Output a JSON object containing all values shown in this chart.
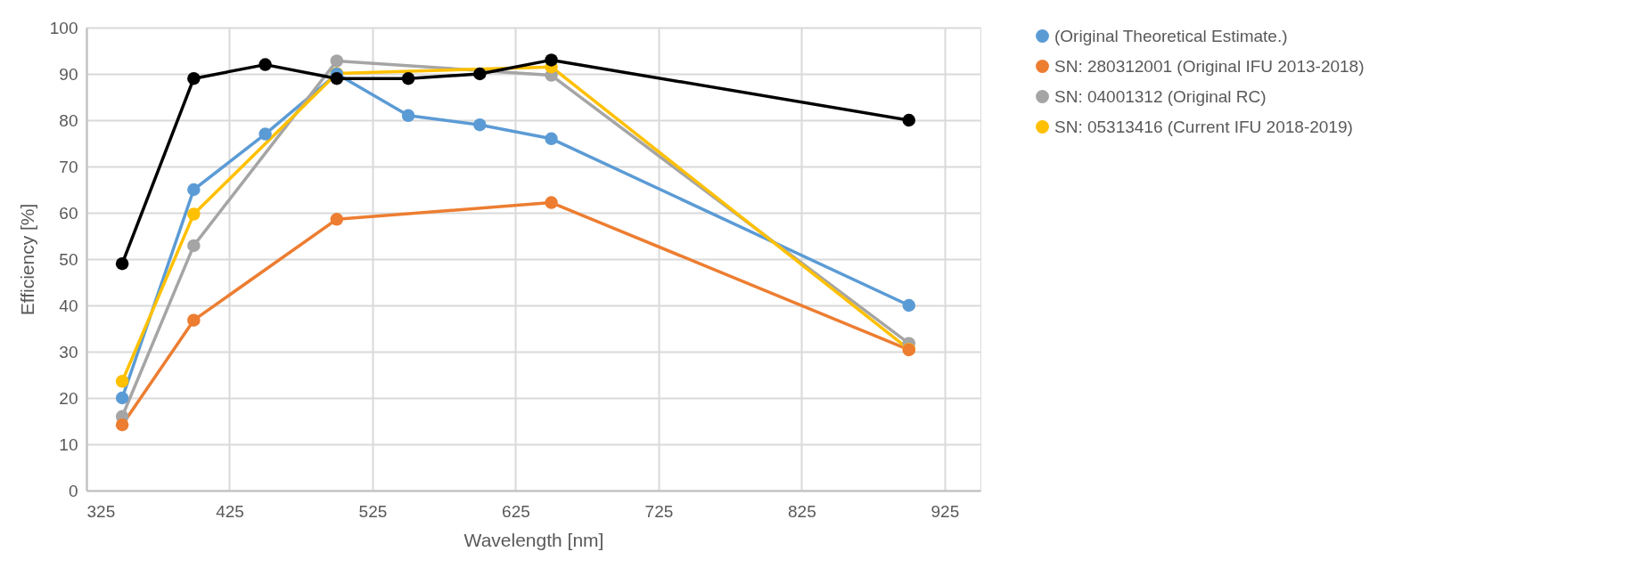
{
  "chart_data": {
    "type": "line",
    "xlabel": "Wavelength [nm]",
    "ylabel": "Efficiency [%]",
    "xlim": [
      325,
      950
    ],
    "xticks": [
      325,
      425,
      525,
      625,
      725,
      825,
      925
    ],
    "ylim": [
      0,
      100
    ],
    "yticks": [
      0,
      10,
      20,
      30,
      40,
      50,
      60,
      70,
      80,
      90,
      100
    ],
    "grid": true,
    "legend": "right",
    "marker": "circle",
    "line_style": "solid",
    "series": [
      {
        "name": "(Original Theoretical Estimate.)",
        "color": "#5b9bd5",
        "x": [
          350,
          400,
          450,
          500,
          550,
          600,
          650,
          900
        ],
        "values": [
          20,
          65,
          77,
          90,
          81,
          79,
          76,
          40
        ]
      },
      {
        "name": "SN: 280312001 (Original IFU 2013-2018)",
        "color": "#ed7d31",
        "x": [
          350,
          400,
          500,
          650,
          900
        ],
        "values": [
          14.2,
          36.8,
          58.6,
          62.2,
          30.4
        ]
      },
      {
        "name": "SN: 04001312 (Original RC)",
        "color": "#a5a5a5",
        "x": [
          350,
          400,
          500,
          650,
          900
        ],
        "values": [
          16,
          52.9,
          92.8,
          89.7,
          31.8
        ]
      },
      {
        "name": "SN: 05313416 (Current IFU 2018-2019)",
        "color": "#ffc000",
        "x": [
          350,
          400,
          500,
          650,
          900
        ],
        "values": [
          23.6,
          59.7,
          90.1,
          91.5,
          30.5
        ]
      },
      {
        "color": "#000000",
        "x": [
          350,
          400,
          450,
          500,
          550,
          600,
          650,
          900
        ],
        "values": [
          49,
          89,
          92,
          89,
          89,
          90,
          93,
          80
        ]
      }
    ]
  }
}
